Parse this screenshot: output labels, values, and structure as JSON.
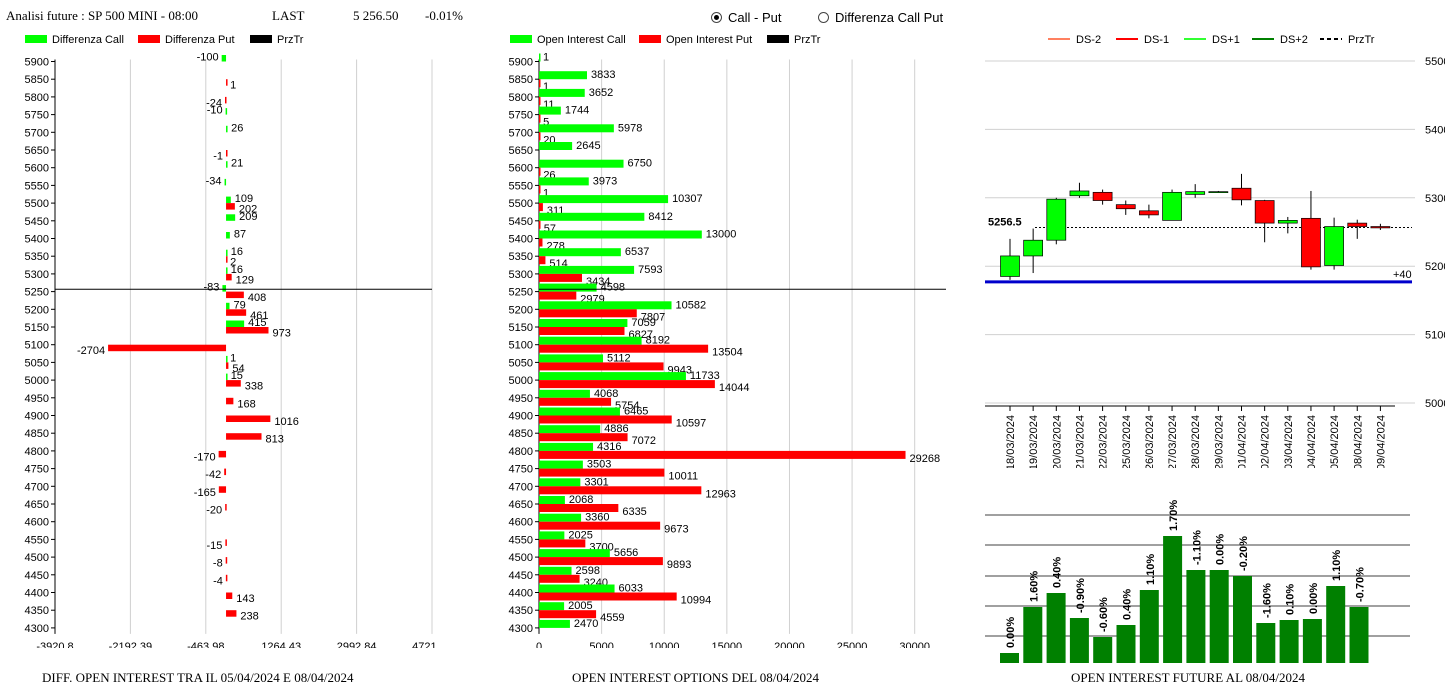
{
  "header": {
    "title": "Analisi future : SP 500 MINI - 08:00",
    "last_label": "LAST",
    "last_value": "5 256.50",
    "change": "-0.01%"
  },
  "radio": {
    "call_put": "Call - Put",
    "diff_call_put": "Differenza Call Put",
    "selected": "Call - Put"
  },
  "footers": {
    "left": "DIFF. OPEN INTEREST TRA IL 05/04/2024 E 08/04/2024",
    "middle": "OPEN INTEREST OPTIONS DEL 08/04/2024",
    "right": "OPEN INTEREST FUTURE AL 08/04/2024"
  },
  "colors": {
    "green": "#00ff00",
    "red": "#ff0000",
    "dark_green": "#008000",
    "blue": "#0000cc",
    "black": "#000000"
  },
  "chart_data": [
    {
      "type": "bar",
      "orientation": "horizontal",
      "legend": [
        "Differenza Call",
        "Differenza Put",
        "PrzTr"
      ],
      "strikes": [
        5900,
        5850,
        5800,
        5750,
        5700,
        5650,
        5600,
        5550,
        5500,
        5450,
        5400,
        5350,
        5300,
        5250,
        5200,
        5150,
        5100,
        5050,
        5000,
        4950,
        4900,
        4850,
        4800,
        4750,
        4700,
        4650,
        4600,
        4550,
        4500,
        4450,
        4400,
        4350,
        4300
      ],
      "series": [
        {
          "name": "Differenza Call",
          "values": [
            -100,
            null,
            null,
            -10,
            26,
            null,
            21,
            -34,
            109,
            209,
            87,
            16,
            16,
            -83,
            79,
            415,
            null,
            1,
            15,
            null,
            null,
            null,
            null,
            null,
            null,
            null,
            null,
            null,
            null,
            null,
            null,
            null,
            null
          ]
        },
        {
          "name": "Differenza Put",
          "values": [
            null,
            1,
            -24,
            null,
            null,
            -1,
            null,
            null,
            202,
            null,
            null,
            2,
            129,
            408,
            461,
            973,
            -2704,
            54,
            338,
            168,
            1016,
            813,
            -170,
            -42,
            -165,
            -20,
            null,
            -15,
            -8,
            -4,
            143,
            238,
            null
          ]
        }
      ],
      "xticks": [
        "-3920.8",
        "-2192.39",
        "-463.98",
        "1264.43",
        "2992.84",
        "4721.25"
      ],
      "xlim": [
        -3920.8,
        4721.25
      ],
      "przTr": 5256.5
    },
    {
      "type": "bar",
      "orientation": "horizontal",
      "legend": [
        "Open Interest Call",
        "Open Interest Put",
        "PrzTr"
      ],
      "strikes": [
        5900,
        5850,
        5800,
        5750,
        5700,
        5650,
        5600,
        5550,
        5500,
        5450,
        5400,
        5350,
        5300,
        5250,
        5200,
        5150,
        5100,
        5050,
        5000,
        4950,
        4900,
        4850,
        4800,
        4750,
        4700,
        4650,
        4600,
        4550,
        4500,
        4450,
        4400,
        4350,
        4300
      ],
      "series": [
        {
          "name": "Open Interest Call",
          "values": [
            1,
            3833,
            3652,
            1744,
            5978,
            2645,
            6750,
            3973,
            10307,
            8412,
            13000,
            6537,
            7593,
            4598,
            10582,
            7059,
            8192,
            5112,
            11733,
            4068,
            6465,
            4886,
            4316,
            3503,
            3301,
            2068,
            3360,
            2025,
            5656,
            2598,
            6033,
            2005,
            2470
          ]
        },
        {
          "name": "Open Interest Put",
          "values": [
            null,
            1,
            11,
            5,
            20,
            null,
            26,
            1,
            311,
            57,
            278,
            514,
            3434,
            2979,
            7807,
            6827,
            13504,
            9943,
            14044,
            5754,
            10597,
            7072,
            29268,
            10011,
            12963,
            6335,
            9673,
            3700,
            9893,
            3240,
            10994,
            4559,
            null
          ]
        }
      ],
      "xticks": [
        "0",
        "5000",
        "10000",
        "15000",
        "20000",
        "25000",
        "30000"
      ],
      "xlim": [
        0,
        32500
      ],
      "przTr": 5256.5
    },
    {
      "type": "candlestick",
      "legend": [
        "DS-2",
        "DS-1",
        "DS+1",
        "DS+2",
        "PrzTr"
      ],
      "x": [
        "18/03/2024",
        "19/03/2024",
        "20/03/2024",
        "21/03/2024",
        "22/03/2024",
        "25/03/2024",
        "26/03/2024",
        "27/03/2024",
        "28/03/2024",
        "29/03/2024",
        "01/04/2024",
        "02/04/2024",
        "03/04/2024",
        "04/04/2024",
        "05/04/2024",
        "08/04/2024",
        "09/04/2024"
      ],
      "ohlc": [
        [
          5185,
          5240,
          5180,
          5215
        ],
        [
          5215,
          5255,
          5190,
          5238
        ],
        [
          5238,
          5300,
          5232,
          5298
        ],
        [
          5303,
          5322,
          5300,
          5310
        ],
        [
          5308,
          5312,
          5290,
          5296
        ],
        [
          5290,
          5296,
          5275,
          5284
        ],
        [
          5281,
          5290,
          5270,
          5275
        ],
        [
          5267,
          5312,
          5267,
          5308
        ],
        [
          5305,
          5320,
          5300,
          5309
        ],
        [
          5309,
          5310,
          5309,
          5309
        ],
        [
          5314,
          5335,
          5289,
          5297
        ],
        [
          5296,
          5297,
          5235,
          5263
        ],
        [
          5263,
          5272,
          5248,
          5267
        ],
        [
          5270,
          5310,
          5195,
          5199
        ],
        [
          5201,
          5271,
          5195,
          5258
        ],
        [
          5263,
          5268,
          5240,
          5258
        ],
        [
          5258,
          5262,
          5253,
          5256
        ]
      ],
      "ylim": [
        5000,
        5500
      ],
      "yticks": [
        "5000",
        "5100",
        "5200",
        "5300",
        "5400",
        "5500"
      ],
      "przTr": 5256.5,
      "przTr_label": "5256.5",
      "ds_minus_2": 5177,
      "right_label": "+40"
    },
    {
      "type": "bar",
      "values": [
        0.0,
        1.6,
        0.4,
        -0.9,
        -0.6,
        0.4,
        1.1,
        1.7,
        -1.1,
        0.0,
        -0.2,
        -1.6,
        0.1,
        0.0,
        1.1,
        -0.7
      ],
      "labels": [
        "0.00%",
        "1.60%",
        "0.40%",
        "-0.90%",
        "-0.60%",
        "0.40%",
        "1.10%",
        "1.70%",
        "-1.10%",
        "0.00%",
        "-0.20%",
        "-1.60%",
        "0.10%",
        "0.00%",
        "1.10%",
        "-0.70%"
      ],
      "bar_levels": [
        10,
        56,
        70,
        45,
        26,
        38,
        73,
        127,
        93,
        93,
        87,
        40,
        43,
        44,
        77,
        56
      ]
    }
  ]
}
